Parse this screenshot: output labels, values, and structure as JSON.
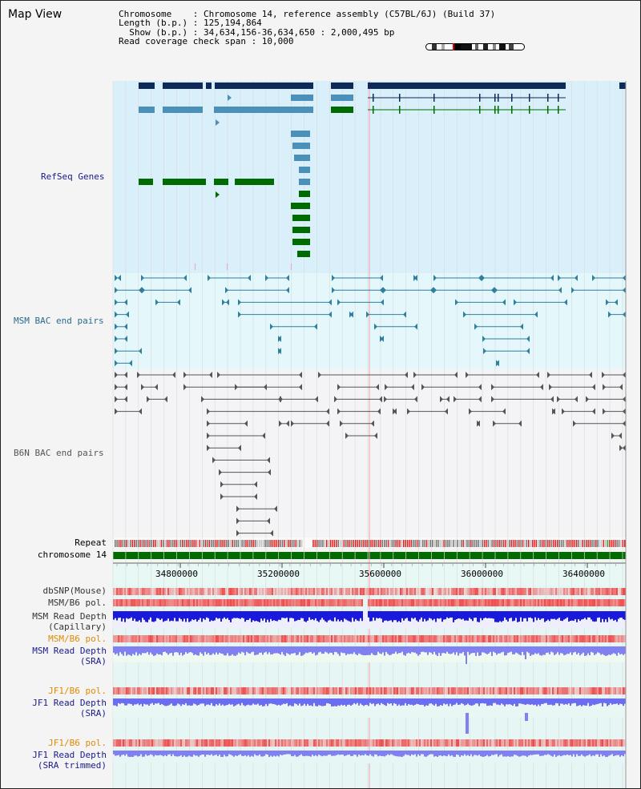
{
  "title": "Map View",
  "info": {
    "line1": "Chromosome    : Chromosome 14, reference assembly (C57BL/6J) (Build 37)",
    "line2": "Length (b.p.) : 125,194,864",
    "line3": "  Show (b.p.) : 34,634,156-36,634,650 : 2,000,495 bp",
    "line4": "Read coverage check span : 10,000"
  },
  "tracks": {
    "refseq": "RefSeq Genes",
    "msm_bac": "MSM BAC end pairs",
    "b6n_bac": "B6N BAC end pairs",
    "repeat": "Repeat",
    "chromosome": "chromosome 14",
    "dbsnp": "dbSNP(Mouse)",
    "msm_b6_pol1": "MSM/B6 pol.",
    "msm_depth_cap": "MSM Read Depth\n(Capillary)",
    "msm_b6_pol2": "MSM/B6 pol.",
    "msm_depth_sra": "MSM Read Depth\n(SRA)",
    "jf1_b6_pol1": "JF1/B6 pol.",
    "jf1_depth_sra": "JF1 Read Depth\n(SRA)",
    "jf1_b6_pol2": "JF1/B6 pol.",
    "jf1_depth_trim": "JF1 Read Depth\n(SRA trimmed)"
  },
  "axis": {
    "ticks": [
      "34800000",
      "35200000",
      "35600000",
      "36000000",
      "36400000"
    ]
  },
  "colors": {
    "refseq_bg": "#d9effa",
    "msm_bac_bg": "#e4f7fb",
    "gene_dark": "#0d2a5a",
    "gene_mid": "#4a90b8",
    "gene_green": "#006b00",
    "bac_teal": "#2f7f9e",
    "bac_grey": "#555555",
    "depth_blue": "#1a1adc",
    "depth_light": "#8080f0",
    "pol_red": "#f04a4a",
    "label_blue": "#1a1a8a",
    "label_orange": "#e08a00",
    "label_teal": "#2a6a8a"
  }
}
